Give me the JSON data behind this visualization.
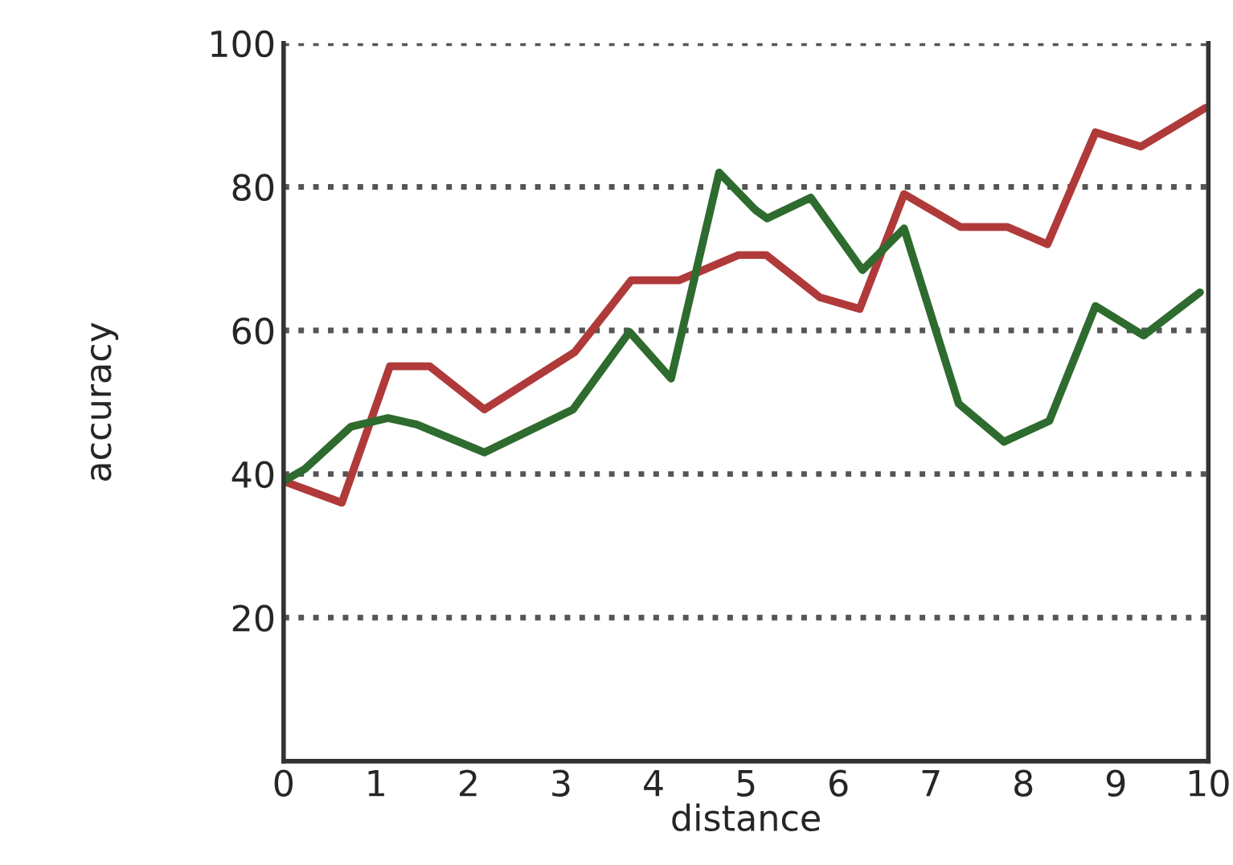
{
  "chart_data": {
    "type": "line",
    "xlabel": "distance",
    "ylabel": "accuracy",
    "xlim": [
      0,
      10
    ],
    "xticks": [
      0,
      1,
      2,
      3,
      4,
      5,
      6,
      7,
      8,
      9,
      10
    ],
    "ylim": [
      0,
      100
    ],
    "yticks": [
      20,
      40,
      60,
      80,
      100
    ],
    "grid": "y",
    "line_style": "solid",
    "series": [
      {
        "color": "#b03a3a",
        "x": [
          0,
          0.63,
          1.15,
          1.58,
          2.17,
          3.15,
          3.76,
          4.28,
          4.92,
          5.22,
          5.8,
          6.23,
          6.71,
          7.32,
          7.83,
          8.26,
          8.78,
          9.27,
          9.97
        ],
        "values": [
          39,
          36,
          55,
          55,
          49,
          57,
          67,
          67,
          70.5,
          70.5,
          64.6,
          63,
          79,
          74.4,
          74.4,
          72,
          87.6,
          85.6,
          91
        ]
      },
      {
        "color": "#2e6b2e",
        "x": [
          0,
          0.23,
          0.73,
          1.13,
          1.44,
          2.17,
          3.13,
          3.74,
          4.19,
          4.71,
          5.1,
          5.23,
          5.7,
          6.26,
          6.71,
          7.3,
          7.79,
          8.28,
          8.78,
          9.3,
          9.91
        ],
        "values": [
          39,
          40.7,
          46.6,
          47.8,
          46.9,
          43,
          49,
          59.8,
          53.3,
          82,
          76.8,
          75.6,
          78.5,
          68.4,
          74.2,
          49.8,
          44.5,
          47.4,
          63.4,
          59.3,
          65.3
        ]
      }
    ]
  }
}
